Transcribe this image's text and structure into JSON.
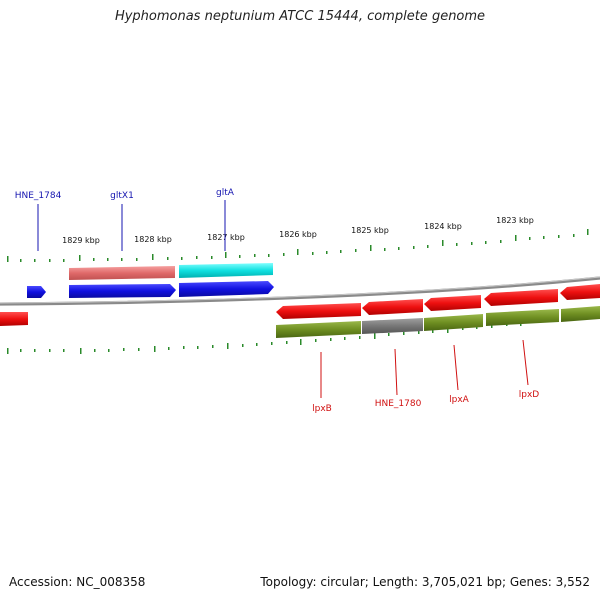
{
  "title": "Hyphomonas neptunium ATCC 15444, complete genome",
  "footer": {
    "accession": "Accession: NC_008358",
    "stats": "Topology: circular; Length: 3,705,021 bp; Genes: 3,552"
  },
  "scale_labels": [
    "1829 kbp",
    "1828 kbp",
    "1827 kbp",
    "1826 kbp",
    "1825 kbp",
    "1824 kbp",
    "1823 kbp"
  ],
  "genes_top": [
    "HNE_1784",
    "gltX1",
    "gltA"
  ],
  "genes_bottom": [
    "lpxB",
    "HNE_1780",
    "lpxA",
    "lpxD"
  ],
  "colors": {
    "forward_gene": "#1a1aee",
    "reverse_gene": "#ee1111",
    "forward_label": "#1515b0",
    "reverse_label": "#d01010",
    "cds_pink": "#e87878",
    "cds_cyan": "#11e0e0",
    "cds_olive": "#6f8f22",
    "cds_gray": "#7a7a7a",
    "tick": "#2a8a2a",
    "backbone": "#888888"
  }
}
